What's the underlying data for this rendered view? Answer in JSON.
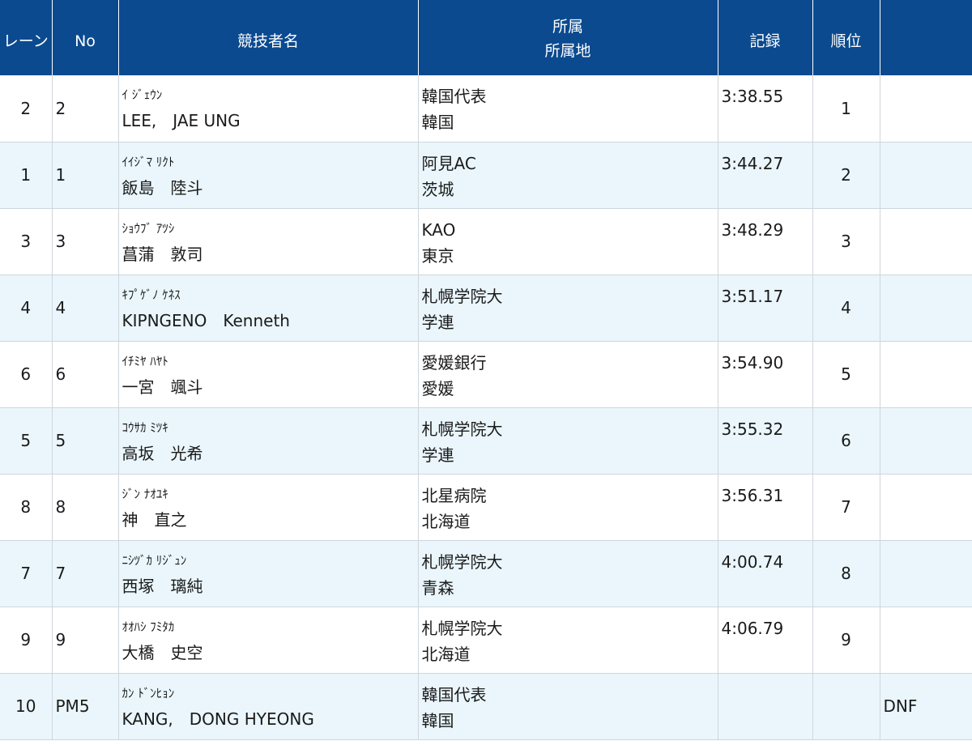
{
  "header": {
    "lane": "レーン",
    "no": "No",
    "name": "競技者名",
    "affiliation": "所属",
    "region": "所属地",
    "record": "記録",
    "rank": "順位",
    "note": ""
  },
  "rows": [
    {
      "lane": "2",
      "no": "2",
      "kana": "ｲ ｼﾞｪｳﾝ",
      "name": "LEE,　JAE UNG",
      "affiliation": "韓国代表",
      "region": "韓国",
      "record": "3:38.55",
      "rank": "1",
      "note": ""
    },
    {
      "lane": "1",
      "no": "1",
      "kana": "ｲｲｼﾞﾏ ﾘｸﾄ",
      "name": "飯島　陸斗",
      "affiliation": "阿見AC",
      "region": "茨城",
      "record": "3:44.27",
      "rank": "2",
      "note": ""
    },
    {
      "lane": "3",
      "no": "3",
      "kana": "ｼｮｳﾌﾞ ｱﾂｼ",
      "name": "菖蒲　敦司",
      "affiliation": "KAO",
      "region": "東京",
      "record": "3:48.29",
      "rank": "3",
      "note": ""
    },
    {
      "lane": "4",
      "no": "4",
      "kana": "ｷﾌﾟｹﾞﾉ ｹﾈｽ",
      "name": "KIPNGENO　Kenneth",
      "affiliation": "札幌学院大",
      "region": "学連",
      "record": "3:51.17",
      "rank": "4",
      "note": ""
    },
    {
      "lane": "6",
      "no": "6",
      "kana": "ｲﾁﾐﾔ ﾊﾔﾄ",
      "name": "一宮　颯斗",
      "affiliation": "愛媛銀行",
      "region": "愛媛",
      "record": "3:54.90",
      "rank": "5",
      "note": ""
    },
    {
      "lane": "5",
      "no": "5",
      "kana": "ｺｳｻｶ ﾐﾂｷ",
      "name": "高坂　光希",
      "affiliation": "札幌学院大",
      "region": "学連",
      "record": "3:55.32",
      "rank": "6",
      "note": ""
    },
    {
      "lane": "8",
      "no": "8",
      "kana": "ｼﾞﾝ ﾅｵﾕｷ",
      "name": "神　直之",
      "affiliation": "北星病院",
      "region": "北海道",
      "record": "3:56.31",
      "rank": "7",
      "note": ""
    },
    {
      "lane": "7",
      "no": "7",
      "kana": "ﾆｼﾂﾞｶ ﾘｼﾞｭﾝ",
      "name": "西塚　璃純",
      "affiliation": "札幌学院大",
      "region": "青森",
      "record": "4:00.74",
      "rank": "8",
      "note": ""
    },
    {
      "lane": "9",
      "no": "9",
      "kana": "ｵｵﾊｼ ﾌﾐﾀｶ",
      "name": "大橋　史空",
      "affiliation": "札幌学院大",
      "region": "北海道",
      "record": "4:06.79",
      "rank": "9",
      "note": ""
    },
    {
      "lane": "10",
      "no": "PM5",
      "kana": "ｶﾝ ﾄﾞﾝﾋｮﾝ",
      "name": "KANG,　DONG HYEONG",
      "affiliation": "韓国代表",
      "region": "韓国",
      "record": "",
      "rank": "",
      "note": "DNF"
    }
  ]
}
